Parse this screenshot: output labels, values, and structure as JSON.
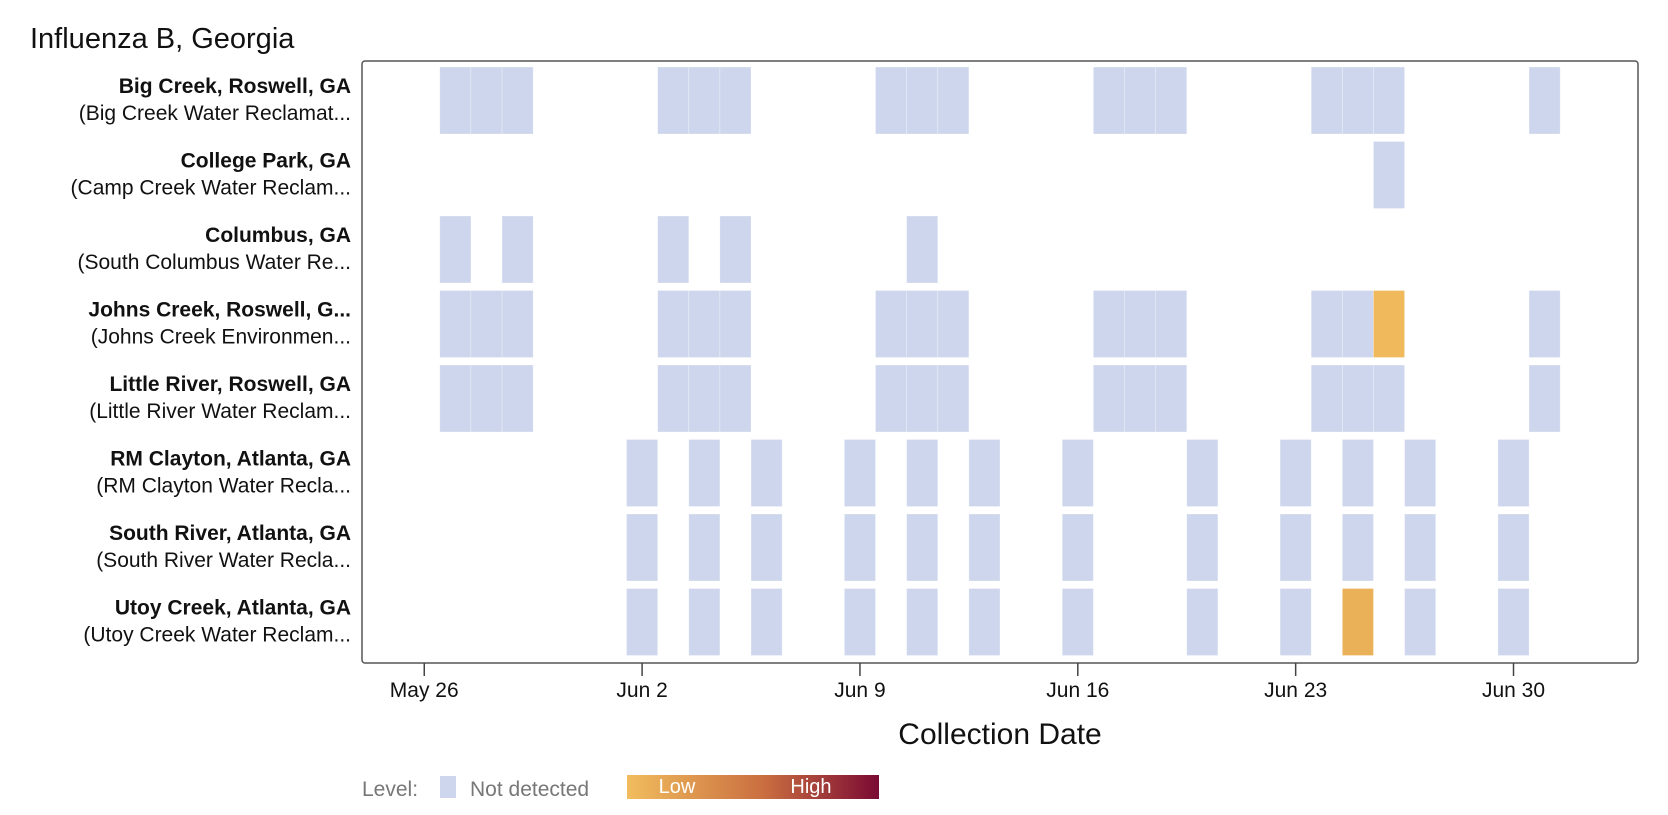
{
  "chart_data": {
    "type": "heatmap",
    "title": "Influenza B, Georgia",
    "xlabel": "Collection Date",
    "ylabel": "",
    "x_ticks": [
      "May 26",
      "Jun 2",
      "Jun 9",
      "Jun 16",
      "Jun 23",
      "Jun 30"
    ],
    "x_range": [
      "2024-05-24",
      "2024-07-04"
    ],
    "sites": [
      {
        "name": "Big Creek, Roswell, GA",
        "facility": "(Big Creek Water Reclamat...",
        "samples": [
          {
            "date": "2024-05-27",
            "level": "not_detected"
          },
          {
            "date": "2024-05-28",
            "level": "not_detected"
          },
          {
            "date": "2024-05-29",
            "level": "not_detected"
          },
          {
            "date": "2024-06-03",
            "level": "not_detected"
          },
          {
            "date": "2024-06-04",
            "level": "not_detected"
          },
          {
            "date": "2024-06-05",
            "level": "not_detected"
          },
          {
            "date": "2024-06-10",
            "level": "not_detected"
          },
          {
            "date": "2024-06-11",
            "level": "not_detected"
          },
          {
            "date": "2024-06-12",
            "level": "not_detected"
          },
          {
            "date": "2024-06-17",
            "level": "not_detected"
          },
          {
            "date": "2024-06-18",
            "level": "not_detected"
          },
          {
            "date": "2024-06-19",
            "level": "not_detected"
          },
          {
            "date": "2024-06-24",
            "level": "not_detected"
          },
          {
            "date": "2024-06-25",
            "level": "not_detected"
          },
          {
            "date": "2024-06-26",
            "level": "not_detected"
          },
          {
            "date": "2024-07-01",
            "level": "not_detected"
          }
        ]
      },
      {
        "name": "College Park, GA",
        "facility": "(Camp Creek Water Reclam...",
        "samples": [
          {
            "date": "2024-06-26",
            "level": "not_detected"
          }
        ]
      },
      {
        "name": "Columbus, GA",
        "facility": "(South Columbus Water Re...",
        "samples": [
          {
            "date": "2024-05-27",
            "level": "not_detected"
          },
          {
            "date": "2024-05-29",
            "level": "not_detected"
          },
          {
            "date": "2024-06-03",
            "level": "not_detected"
          },
          {
            "date": "2024-06-05",
            "level": "not_detected"
          },
          {
            "date": "2024-06-11",
            "level": "not_detected"
          }
        ]
      },
      {
        "name": "Johns Creek, Roswell, G...",
        "facility": "(Johns Creek Environmen...",
        "samples": [
          {
            "date": "2024-05-27",
            "level": "not_detected"
          },
          {
            "date": "2024-05-28",
            "level": "not_detected"
          },
          {
            "date": "2024-05-29",
            "level": "not_detected"
          },
          {
            "date": "2024-06-03",
            "level": "not_detected"
          },
          {
            "date": "2024-06-04",
            "level": "not_detected"
          },
          {
            "date": "2024-06-05",
            "level": "not_detected"
          },
          {
            "date": "2024-06-10",
            "level": "not_detected"
          },
          {
            "date": "2024-06-11",
            "level": "not_detected"
          },
          {
            "date": "2024-06-12",
            "level": "not_detected"
          },
          {
            "date": "2024-06-17",
            "level": "not_detected"
          },
          {
            "date": "2024-06-18",
            "level": "not_detected"
          },
          {
            "date": "2024-06-19",
            "level": "not_detected"
          },
          {
            "date": "2024-06-24",
            "level": "not_detected"
          },
          {
            "date": "2024-06-25",
            "level": "not_detected"
          },
          {
            "date": "2024-06-26",
            "level": 0.02
          },
          {
            "date": "2024-07-01",
            "level": "not_detected"
          }
        ]
      },
      {
        "name": "Little River, Roswell, GA",
        "facility": "(Little River Water Reclam...",
        "samples": [
          {
            "date": "2024-05-27",
            "level": "not_detected"
          },
          {
            "date": "2024-05-28",
            "level": "not_detected"
          },
          {
            "date": "2024-05-29",
            "level": "not_detected"
          },
          {
            "date": "2024-06-03",
            "level": "not_detected"
          },
          {
            "date": "2024-06-04",
            "level": "not_detected"
          },
          {
            "date": "2024-06-05",
            "level": "not_detected"
          },
          {
            "date": "2024-06-10",
            "level": "not_detected"
          },
          {
            "date": "2024-06-11",
            "level": "not_detected"
          },
          {
            "date": "2024-06-12",
            "level": "not_detected"
          },
          {
            "date": "2024-06-17",
            "level": "not_detected"
          },
          {
            "date": "2024-06-18",
            "level": "not_detected"
          },
          {
            "date": "2024-06-19",
            "level": "not_detected"
          },
          {
            "date": "2024-06-24",
            "level": "not_detected"
          },
          {
            "date": "2024-06-25",
            "level": "not_detected"
          },
          {
            "date": "2024-06-26",
            "level": "not_detected"
          },
          {
            "date": "2024-07-01",
            "level": "not_detected"
          }
        ]
      },
      {
        "name": "RM Clayton, Atlanta, GA",
        "facility": "(RM Clayton Water Recla...",
        "samples": [
          {
            "date": "2024-06-02",
            "level": "not_detected"
          },
          {
            "date": "2024-06-04",
            "level": "not_detected"
          },
          {
            "date": "2024-06-06",
            "level": "not_detected"
          },
          {
            "date": "2024-06-09",
            "level": "not_detected"
          },
          {
            "date": "2024-06-11",
            "level": "not_detected"
          },
          {
            "date": "2024-06-13",
            "level": "not_detected"
          },
          {
            "date": "2024-06-16",
            "level": "not_detected"
          },
          {
            "date": "2024-06-20",
            "level": "not_detected"
          },
          {
            "date": "2024-06-23",
            "level": "not_detected"
          },
          {
            "date": "2024-06-25",
            "level": "not_detected"
          },
          {
            "date": "2024-06-27",
            "level": "not_detected"
          },
          {
            "date": "2024-06-30",
            "level": "not_detected"
          }
        ]
      },
      {
        "name": "South River, Atlanta, GA",
        "facility": "(South River Water Recla...",
        "samples": [
          {
            "date": "2024-06-02",
            "level": "not_detected"
          },
          {
            "date": "2024-06-04",
            "level": "not_detected"
          },
          {
            "date": "2024-06-06",
            "level": "not_detected"
          },
          {
            "date": "2024-06-09",
            "level": "not_detected"
          },
          {
            "date": "2024-06-11",
            "level": "not_detected"
          },
          {
            "date": "2024-06-13",
            "level": "not_detected"
          },
          {
            "date": "2024-06-16",
            "level": "not_detected"
          },
          {
            "date": "2024-06-20",
            "level": "not_detected"
          },
          {
            "date": "2024-06-23",
            "level": "not_detected"
          },
          {
            "date": "2024-06-25",
            "level": "not_detected"
          },
          {
            "date": "2024-06-27",
            "level": "not_detected"
          },
          {
            "date": "2024-06-30",
            "level": "not_detected"
          }
        ]
      },
      {
        "name": "Utoy Creek, Atlanta, GA",
        "facility": "(Utoy Creek Water Reclam...",
        "samples": [
          {
            "date": "2024-06-02",
            "level": "not_detected"
          },
          {
            "date": "2024-06-04",
            "level": "not_detected"
          },
          {
            "date": "2024-06-06",
            "level": "not_detected"
          },
          {
            "date": "2024-06-09",
            "level": "not_detected"
          },
          {
            "date": "2024-06-11",
            "level": "not_detected"
          },
          {
            "date": "2024-06-13",
            "level": "not_detected"
          },
          {
            "date": "2024-06-16",
            "level": "not_detected"
          },
          {
            "date": "2024-06-20",
            "level": "not_detected"
          },
          {
            "date": "2024-06-23",
            "level": "not_detected"
          },
          {
            "date": "2024-06-25",
            "level": 0.08
          },
          {
            "date": "2024-06-27",
            "level": "not_detected"
          },
          {
            "date": "2024-06-30",
            "level": "not_detected"
          }
        ]
      }
    ],
    "legend": {
      "title": "Level:",
      "not_detected_label": "Not detected",
      "low_label": "Low",
      "high_label": "High",
      "placement": "bottom-left"
    },
    "grid": false
  },
  "colors": {
    "not_detected": "#cdd6ec",
    "scale_low": "#f1bd5d",
    "scale_mid": "#c96d40",
    "scale_high": "#7a0a33",
    "frame": "#555555",
    "text": "#111111",
    "legend_text": "#777777"
  }
}
